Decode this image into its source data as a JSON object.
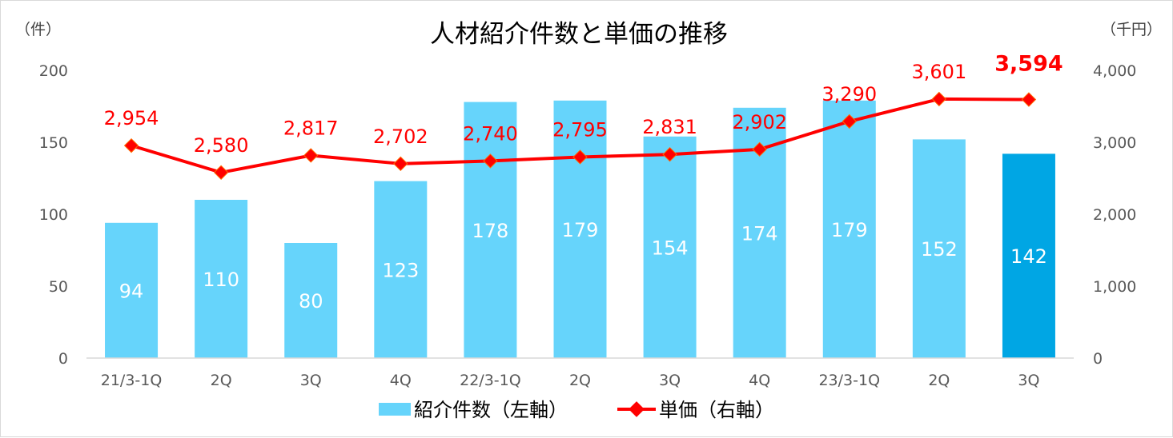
{
  "chart_data": {
    "type": "bar",
    "title": "人材紹介件数と単価の推移",
    "ylabel_left": "（件）",
    "ylabel_right": "（千円）",
    "categories": [
      "21/3-1Q",
      "2Q",
      "3Q",
      "4Q",
      "22/3-1Q",
      "2Q",
      "3Q",
      "4Q",
      "23/3-1Q",
      "2Q",
      "3Q"
    ],
    "series": [
      {
        "name": "紹介件数（左軸）",
        "type": "bar",
        "axis": "left",
        "values": [
          94,
          110,
          80,
          123,
          178,
          179,
          154,
          174,
          179,
          152,
          142
        ],
        "color": "#66d4fb",
        "highlight_index": 10,
        "highlight_color": "#00a6e4"
      },
      {
        "name": "単価（右軸）",
        "type": "line",
        "axis": "right",
        "values": [
          2954,
          2580,
          2817,
          2702,
          2740,
          2795,
          2831,
          2902,
          3290,
          3601,
          3594
        ],
        "labels": [
          "2,954",
          "2,580",
          "2,817",
          "2,702",
          "2,740",
          "2,795",
          "2,831",
          "2,902",
          "3,290",
          "3,601",
          "3,594"
        ],
        "color": "#ff0000",
        "emphasis_index": 10
      }
    ],
    "ylim_left": [
      0,
      200
    ],
    "yticks_left": [
      "0",
      "50",
      "100",
      "150",
      "200"
    ],
    "ylim_right": [
      0,
      4000
    ],
    "yticks_right": [
      "0",
      "1,000",
      "2,000",
      "3,000",
      "4,000"
    ],
    "grid": false,
    "legend_position": "bottom"
  }
}
